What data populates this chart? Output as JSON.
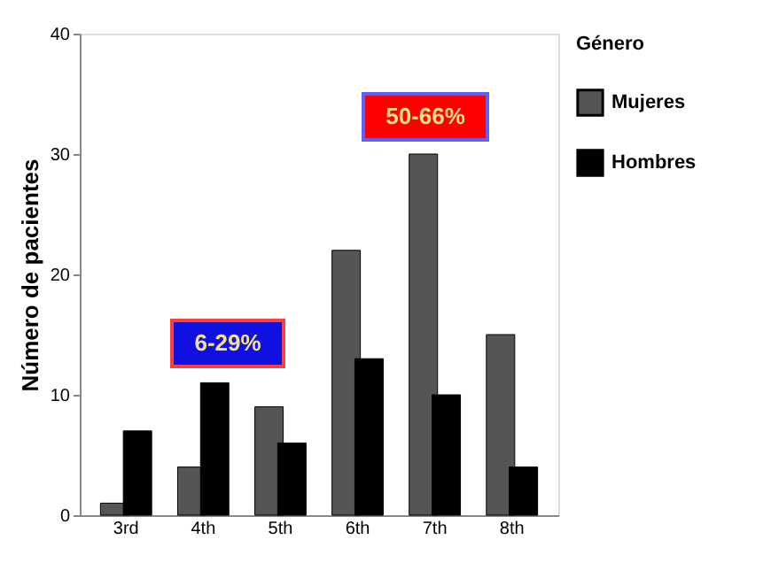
{
  "chart_data": {
    "type": "bar",
    "ylabel": "Número de pacientes",
    "legend_title": "Género",
    "categories": [
      "3rd",
      "4th",
      "5th",
      "6th",
      "7th",
      "8th"
    ],
    "series": [
      {
        "name": "Mujeres",
        "color": "#555555",
        "values": [
          1,
          4,
          9,
          22,
          30,
          15
        ]
      },
      {
        "name": "Hombres",
        "color": "#000000",
        "values": [
          7,
          11,
          6,
          13,
          10,
          4
        ]
      }
    ],
    "ylim": [
      0,
      40
    ],
    "yticks": [
      0,
      10,
      20,
      30,
      40
    ],
    "grid": false,
    "legend": "right",
    "annotations": [
      "6-29%",
      "50-66%"
    ]
  }
}
